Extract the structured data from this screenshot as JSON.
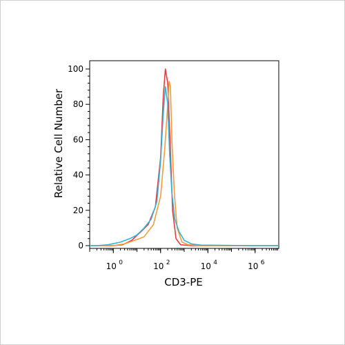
{
  "chart_data": {
    "type": "line",
    "title": "",
    "xlabel": "CD3-PE",
    "ylabel": "Relative Cell Number",
    "x_scale": "log10",
    "xlim": [
      0.1,
      10000000
    ],
    "ylim": [
      0,
      100
    ],
    "x_ticks": [
      {
        "base": "10",
        "exp": "0",
        "value": 1
      },
      {
        "base": "10",
        "exp": "2",
        "value": 100
      },
      {
        "base": "10",
        "exp": "4",
        "value": 10000
      },
      {
        "base": "10",
        "exp": "6",
        "value": 1000000
      }
    ],
    "y_ticks": [
      "0",
      "20",
      "40",
      "60",
      "80",
      "100"
    ],
    "grid": false,
    "legend": "none",
    "series": [
      {
        "color": "#e8383d",
        "x": [
          0.1,
          0.2,
          1,
          2.5,
          6,
          15,
          30,
          60,
          100,
          130,
          160,
          200,
          250,
          320,
          450,
          700,
          2000,
          1000000,
          10000000
        ],
        "y": [
          0,
          0,
          0,
          0.5,
          3,
          8,
          12,
          22,
          50,
          85,
          100,
          92,
          60,
          20,
          4,
          0.5,
          0,
          0,
          0
        ]
      },
      {
        "color": "#f39a3d",
        "x": [
          0.1,
          0.3,
          1,
          3,
          8,
          20,
          50,
          100,
          150,
          200,
          230,
          260,
          300,
          380,
          500,
          800,
          1500,
          5000,
          1000000,
          10000000
        ],
        "y": [
          0,
          0,
          0,
          1,
          3,
          5,
          12,
          28,
          55,
          80,
          93,
          90,
          60,
          30,
          10,
          2,
          0.5,
          0,
          0,
          0
        ]
      },
      {
        "color": "#34b3d6",
        "x": [
          0.1,
          0.2,
          0.6,
          2,
          5,
          10,
          20,
          40,
          70,
          100,
          130,
          160,
          200,
          240,
          300,
          400,
          600,
          1000,
          2000,
          5000,
          1000000,
          10000000
        ],
        "y": [
          0,
          0,
          0.5,
          2,
          4,
          6,
          10,
          15,
          25,
          48,
          75,
          90,
          80,
          52,
          30,
          15,
          8,
          3,
          1,
          0.3,
          0,
          0
        ]
      }
    ]
  }
}
